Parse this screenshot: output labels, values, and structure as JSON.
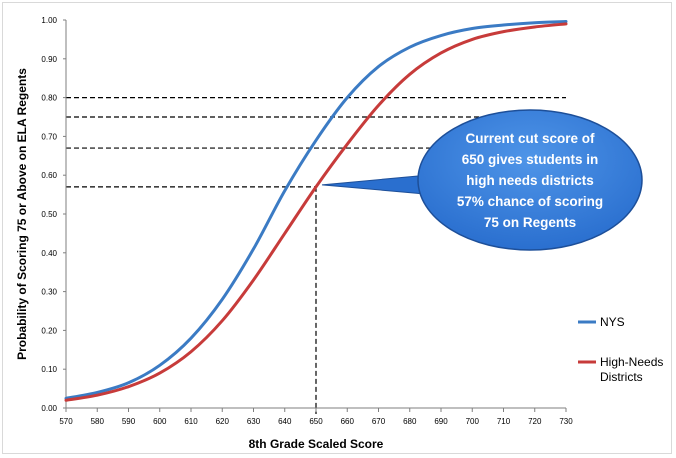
{
  "colors": {
    "nys": "#3b7bc4",
    "high_needs": "#c73b3a",
    "callout_fill": "#2a6fcf",
    "callout_edge": "#1d4f99",
    "reference": "#000000"
  },
  "chart_data": {
    "type": "line",
    "title": "",
    "xlabel": "8th Grade Scaled Score",
    "ylabel": "Probability of Scoring 75 or Above on ELA Regents",
    "xlim": [
      570,
      730
    ],
    "ylim": [
      0,
      1
    ],
    "x_ticks": [
      "570",
      "580",
      "590",
      "600",
      "610",
      "620",
      "630",
      "640",
      "650",
      "660",
      "670",
      "680",
      "690",
      "700",
      "710",
      "720",
      "730"
    ],
    "y_ticks": [
      "0.00",
      "0.10",
      "0.20",
      "0.30",
      "0.40",
      "0.50",
      "0.60",
      "0.70",
      "0.80",
      "0.90",
      "1.00"
    ],
    "grid": false,
    "legend_position": "right",
    "x": [
      570,
      580,
      590,
      600,
      610,
      620,
      630,
      640,
      650,
      660,
      670,
      680,
      690,
      700,
      710,
      720,
      730
    ],
    "series": [
      {
        "name": "NYS",
        "color": "#3b7bc4",
        "values": [
          0.025,
          0.04,
          0.065,
          0.11,
          0.18,
          0.28,
          0.41,
          0.56,
          0.69,
          0.8,
          0.88,
          0.93,
          0.96,
          0.978,
          0.987,
          0.993,
          0.996
        ]
      },
      {
        "name": "High-Needs Districts",
        "color": "#c73b3a",
        "values": [
          0.02,
          0.033,
          0.055,
          0.09,
          0.145,
          0.225,
          0.33,
          0.45,
          0.57,
          0.68,
          0.78,
          0.86,
          0.915,
          0.95,
          0.97,
          0.982,
          0.99
        ]
      }
    ],
    "reference_lines": {
      "horizontal": [
        0.8,
        0.75,
        0.67,
        0.57
      ],
      "vertical_x": 650
    },
    "annotation": {
      "lines": [
        "Current cut score of",
        "650 gives students in",
        "high needs districts",
        "57% chance of scoring",
        "75 on Regents"
      ],
      "target": [
        650,
        0.57
      ]
    }
  }
}
